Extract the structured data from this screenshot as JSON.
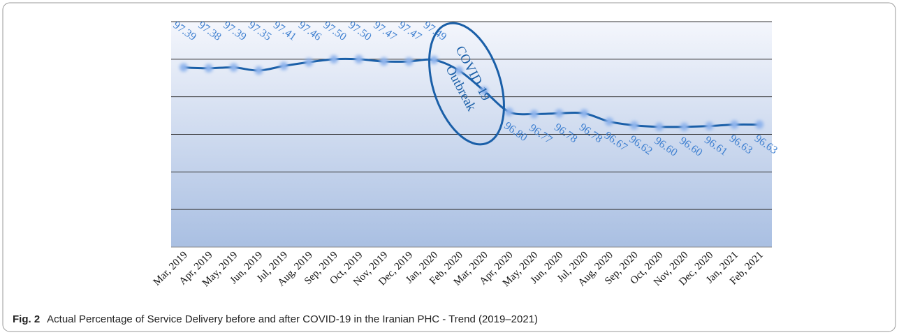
{
  "chart_data": {
    "type": "line",
    "categories": [
      "Mar, 2019",
      "Apr, 2019",
      "May, 2019",
      "Jun, 2019",
      "Jul, 2019",
      "Aug, 2019",
      "Sep, 2019",
      "Oct, 2019",
      "Nov, 2019",
      "Dec, 2019",
      "Jan, 2020",
      "Feb, 2020",
      "Mar, 2020",
      "Apr, 2020",
      "May, 2020",
      "Jun, 2020",
      "Jul, 2020",
      "Aug, 2020",
      "Sep, 2020",
      "Oct, 2020",
      "Nov, 2020",
      "Dec, 2020",
      "Jan, 2021",
      "Feb, 2021"
    ],
    "values": [
      97.39,
      97.38,
      97.39,
      97.35,
      97.41,
      97.46,
      97.5,
      97.5,
      97.47,
      97.47,
      97.49,
      97.35,
      97.08,
      96.8,
      96.77,
      96.78,
      96.78,
      96.67,
      96.62,
      96.6,
      96.6,
      96.61,
      96.63,
      96.63
    ],
    "value_labels": [
      "97.39",
      "97.38",
      "97.39",
      "97.35",
      "97.41",
      "97.46",
      "97.50",
      "97.50",
      "97.47",
      "97.47",
      "97.49",
      null,
      null,
      "96.80",
      "96.77",
      "96.78",
      "96.78",
      "96.67",
      "96.62",
      "96.60",
      "96.60",
      "96.61",
      "96.63",
      "96.63"
    ],
    "color": "#1a5fa8",
    "ylim": [
      95,
      98
    ],
    "yticks": [
      95,
      95.5,
      96,
      96.5,
      97,
      97.5,
      98
    ],
    "show_ytick_labels": false,
    "grid": true,
    "annotation": [
      "COVID-19",
      "Outbreak"
    ],
    "caption_label": "Fig. 2",
    "caption_text": "Actual Percentage of Service Delivery before and after COVID-19 in the Iranian PHC - Trend (2019–2021)"
  }
}
